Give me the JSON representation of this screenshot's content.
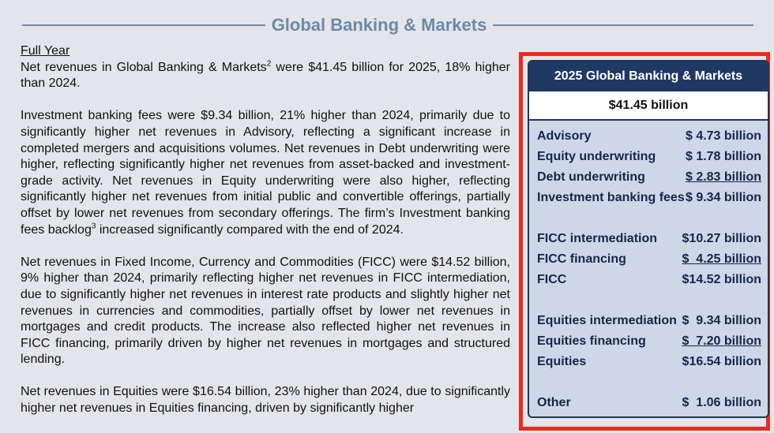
{
  "header": {
    "title": "Global Banking & Markets"
  },
  "body": {
    "subheading": "Full Year",
    "paragraphs": [
      [
        {
          "text": "Net revenues in Global Banking & Markets"
        },
        {
          "sup": "2"
        },
        {
          "text": " were $41.45 billion for 2025, 18% higher than 2024."
        }
      ],
      [
        {
          "text": "Investment banking fees were $9.34 billion, 21% higher than 2024, primarily due to significantly higher net revenues in Advisory, reflecting a significant increase in completed mergers and acquisitions volumes. Net revenues in Debt underwriting were higher, reflecting significantly higher net revenues from asset-backed and investment-grade activity. Net revenues in Equity underwriting were also higher, reflecting significantly higher net revenues from initial public and convertible offerings, partially offset by lower net revenues from secondary offerings. The firm’s Investment banking fees backlog"
        },
        {
          "sup": "3"
        },
        {
          "text": " increased significantly compared with the end of 2024."
        }
      ],
      [
        {
          "text": "Net revenues in Fixed Income, Currency and Commodities (FICC) were $14.52 billion, 9% higher than 2024, primarily reflecting higher net revenues in FICC intermediation, due to significantly higher net revenues in interest rate products and slightly higher net revenues in currencies and commodities, partially offset by lower net revenues in mortgages and credit products. The increase also reflected higher net revenues in FICC financing, primarily driven by higher net revenues in mortgages and structured lending."
        }
      ],
      [
        {
          "text": "Net revenues in Equities were $16.54 billion, 23% higher than 2024, due to significantly higher net revenues in Equities financing, driven by significantly higher"
        }
      ]
    ]
  },
  "panel": {
    "title": "2025 Global Banking & Markets",
    "total": "$41.45 billion",
    "groups": [
      [
        {
          "label": "Advisory",
          "value": "$ 4.73 billion"
        },
        {
          "label": "Equity underwriting",
          "value": "$ 1.78 billion"
        },
        {
          "label": "Debt underwriting",
          "value": "$ 2.83 billion",
          "underline": true
        },
        {
          "label": "Investment banking fees",
          "value": "$ 9.34 billion"
        }
      ],
      [
        {
          "label": "FICC intermediation",
          "value": "$10.27 billion"
        },
        {
          "label": "FICC financing",
          "value": "$  4.25 billion",
          "underline": true
        },
        {
          "label": "FICC",
          "value": "$14.52 billion"
        }
      ],
      [
        {
          "label": "Equities intermediation",
          "value": "$  9.34 billion"
        },
        {
          "label": "Equities financing",
          "value": "$  7.20 billion",
          "underline": true
        },
        {
          "label": "Equities",
          "value": "$16.54 billion"
        }
      ],
      [
        {
          "label": "Other",
          "value": "$  1.06 billion"
        }
      ]
    ]
  }
}
